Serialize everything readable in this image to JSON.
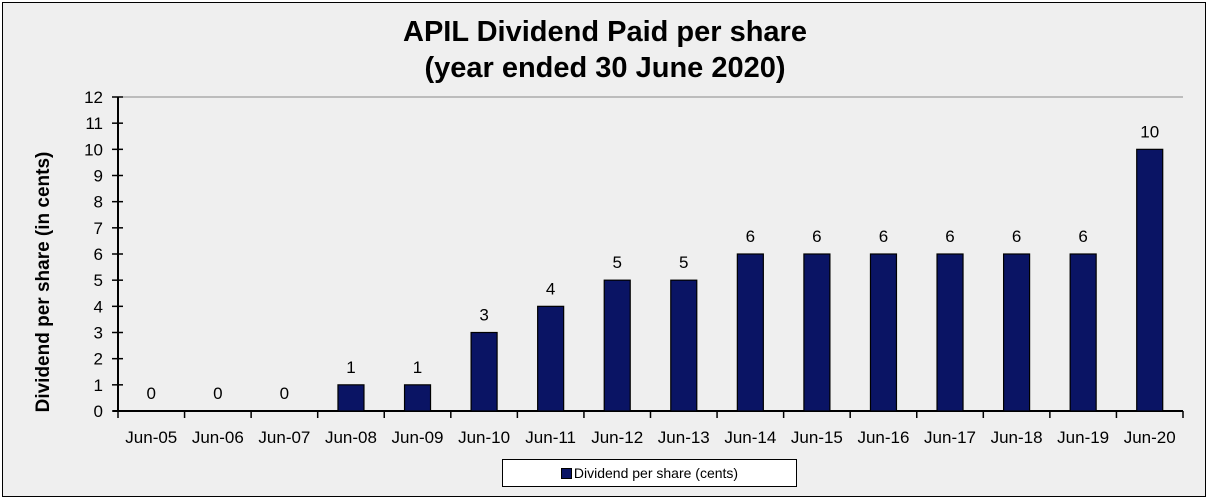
{
  "chart_data": {
    "type": "bar",
    "title": "APIL Dividend Paid per share\n(year ended 30 June 2020)",
    "title_lines": [
      "APIL Dividend Paid per share",
      "(year ended 30 June 2020)"
    ],
    "xlabel": "",
    "ylabel": "Dividend per share (in cents)",
    "ylim": [
      0,
      12
    ],
    "yticks": [
      0,
      1,
      2,
      3,
      4,
      5,
      6,
      7,
      8,
      9,
      10,
      11,
      12
    ],
    "categories": [
      "Jun-05",
      "Jun-06",
      "Jun-07",
      "Jun-08",
      "Jun-09",
      "Jun-10",
      "Jun-11",
      "Jun-12",
      "Jun-13",
      "Jun-14",
      "Jun-15",
      "Jun-16",
      "Jun-17",
      "Jun-18",
      "Jun-19",
      "Jun-20"
    ],
    "series": [
      {
        "name": "Dividend per share (cents)",
        "values": [
          0,
          0,
          0,
          1,
          1,
          3,
          4,
          5,
          5,
          6,
          6,
          6,
          6,
          6,
          6,
          10
        ],
        "color": "#0a1464"
      }
    ],
    "data_labels": true,
    "grid": false,
    "legend": "bottom-center",
    "background": "#efefef"
  }
}
